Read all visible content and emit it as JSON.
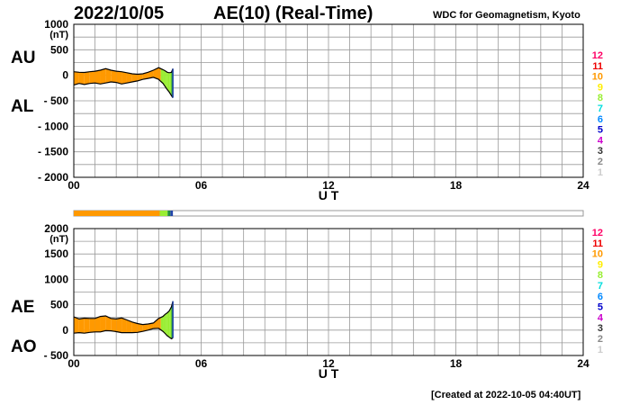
{
  "header": {
    "date": "2022/10/05",
    "title": "AE(10) (Real-Time)",
    "organization": "WDC for Geomagnetism, Kyoto"
  },
  "footer": {
    "created": "[Created at 2022-10-05 04:40UT]"
  },
  "colors": {
    "fill_main": "#ff9900",
    "fill_late": "#99ee33",
    "fill_recent": "#1f8f3f",
    "fill_latest": "#2244aa",
    "grid": "#999999",
    "bar_outline": "#999999"
  },
  "station_legend": [
    {
      "label": "12",
      "color": "#ff0066"
    },
    {
      "label": "11",
      "color": "#ee0000"
    },
    {
      "label": "10",
      "color": "#ff9900"
    },
    {
      "label": "9",
      "color": "#ffee00"
    },
    {
      "label": "8",
      "color": "#99ee33"
    },
    {
      "label": "7",
      "color": "#00dddd"
    },
    {
      "label": "6",
      "color": "#0088ff"
    },
    {
      "label": "5",
      "color": "#0000cc"
    },
    {
      "label": "4",
      "color": "#cc00cc"
    },
    {
      "label": "3",
      "color": "#333333"
    },
    {
      "label": "2",
      "color": "#888888"
    },
    {
      "label": "1",
      "color": "#cccccc"
    }
  ],
  "coverage_bar": [
    {
      "from": 0,
      "to": 4.05,
      "color": "#ff9900"
    },
    {
      "from": 4.05,
      "to": 4.42,
      "color": "#99ee33"
    },
    {
      "from": 4.42,
      "to": 4.55,
      "color": "#1f8f3f"
    },
    {
      "from": 4.55,
      "to": 4.67,
      "color": "#2244aa"
    }
  ],
  "chart_data": [
    {
      "type": "area",
      "xlabel": "U T",
      "ylabel": "(nT)",
      "xlim": [
        0,
        24
      ],
      "ylim": [
        -2000,
        1000
      ],
      "xticks": [
        0,
        6,
        12,
        18,
        24
      ],
      "xtick_labels": [
        "00",
        "06",
        "12",
        "18",
        "24"
      ],
      "yticks": [
        1000,
        500,
        0,
        -500,
        -1000,
        -1500,
        -2000
      ],
      "ytick_labels": [
        "1000",
        "500",
        "0",
        "- 500",
        "- 1000",
        "- 1500",
        "- 2000"
      ],
      "side_labels": [
        "AU",
        "AL"
      ],
      "grid": true,
      "x": [
        0,
        0.25,
        0.5,
        0.75,
        1,
        1.25,
        1.5,
        1.75,
        2,
        2.25,
        2.5,
        2.75,
        3,
        3.25,
        3.5,
        3.75,
        4,
        4.1,
        4.2,
        4.3,
        4.4,
        4.5,
        4.6,
        4.67
      ],
      "series": [
        {
          "name": "AU",
          "values": [
            70,
            60,
            55,
            70,
            80,
            100,
            130,
            100,
            80,
            70,
            50,
            30,
            20,
            30,
            60,
            100,
            150,
            130,
            110,
            90,
            60,
            50,
            60,
            130
          ]
        },
        {
          "name": "AL",
          "values": [
            -190,
            -160,
            -180,
            -160,
            -150,
            -170,
            -150,
            -130,
            -140,
            -170,
            -150,
            -130,
            -110,
            -80,
            -60,
            -40,
            -80,
            -120,
            -160,
            -220,
            -280,
            -330,
            -400,
            -440
          ]
        }
      ]
    },
    {
      "type": "area",
      "xlabel": "U T",
      "ylabel": "(nT)",
      "xlim": [
        0,
        24
      ],
      "ylim": [
        -500,
        2000
      ],
      "xticks": [
        0,
        6,
        12,
        18,
        24
      ],
      "xtick_labels": [
        "00",
        "06",
        "12",
        "18",
        "24"
      ],
      "yticks": [
        2000,
        1500,
        1000,
        500,
        0,
        -500
      ],
      "ytick_labels": [
        "2000",
        "1500",
        "1000",
        "500",
        "0",
        "- 500"
      ],
      "side_labels": [
        "AE",
        "AO"
      ],
      "grid": true,
      "x": [
        0,
        0.25,
        0.5,
        0.75,
        1,
        1.25,
        1.5,
        1.75,
        2,
        2.25,
        2.5,
        2.75,
        3,
        3.25,
        3.5,
        3.75,
        4,
        4.1,
        4.2,
        4.3,
        4.4,
        4.5,
        4.6,
        4.67
      ],
      "series": [
        {
          "name": "AE",
          "values": [
            260,
            220,
            235,
            230,
            230,
            270,
            280,
            230,
            220,
            240,
            200,
            160,
            130,
            110,
            120,
            140,
            230,
            250,
            270,
            310,
            340,
            380,
            460,
            570
          ]
        },
        {
          "name": "AO",
          "values": [
            -60,
            -50,
            -60,
            -45,
            -35,
            -35,
            -10,
            -15,
            -30,
            -50,
            -50,
            -50,
            -45,
            -25,
            0,
            30,
            35,
            5,
            -25,
            -65,
            -110,
            -140,
            -170,
            -155
          ]
        }
      ]
    }
  ]
}
